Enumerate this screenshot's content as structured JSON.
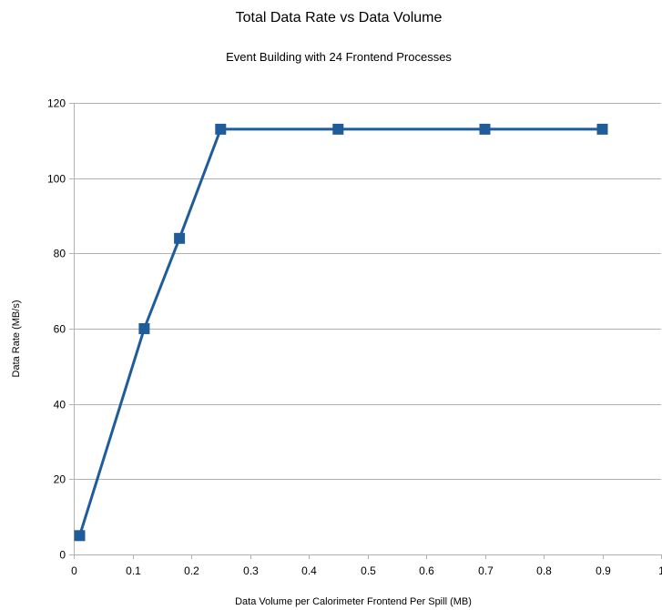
{
  "chart_data": {
    "type": "line",
    "title": "Total Data Rate vs Data Volume",
    "subtitle": "Event Building with 24 Frontend Processes",
    "xlabel": "Data Volume per Calorimeter Frontend Per Spill (MB)",
    "ylabel": "Data Rate (MB/s)",
    "xlim": [
      0,
      1
    ],
    "ylim": [
      0,
      120
    ],
    "x_ticks": [
      "0",
      "0.1",
      "0.2",
      "0.3",
      "0.4",
      "0.5",
      "0.6",
      "0.7",
      "0.8",
      "0.9",
      "1"
    ],
    "y_ticks": [
      "0",
      "20",
      "40",
      "60",
      "80",
      "100",
      "120"
    ],
    "grid": true,
    "legend": "none",
    "series": [
      {
        "marker": "square",
        "color": "#1f5c99",
        "points": [
          {
            "x": 0.01,
            "y": 5
          },
          {
            "x": 0.12,
            "y": 60
          },
          {
            "x": 0.18,
            "y": 84
          },
          {
            "x": 0.25,
            "y": 113
          },
          {
            "x": 0.45,
            "y": 113
          },
          {
            "x": 0.7,
            "y": 113
          },
          {
            "x": 0.9,
            "y": 113
          }
        ]
      }
    ]
  }
}
